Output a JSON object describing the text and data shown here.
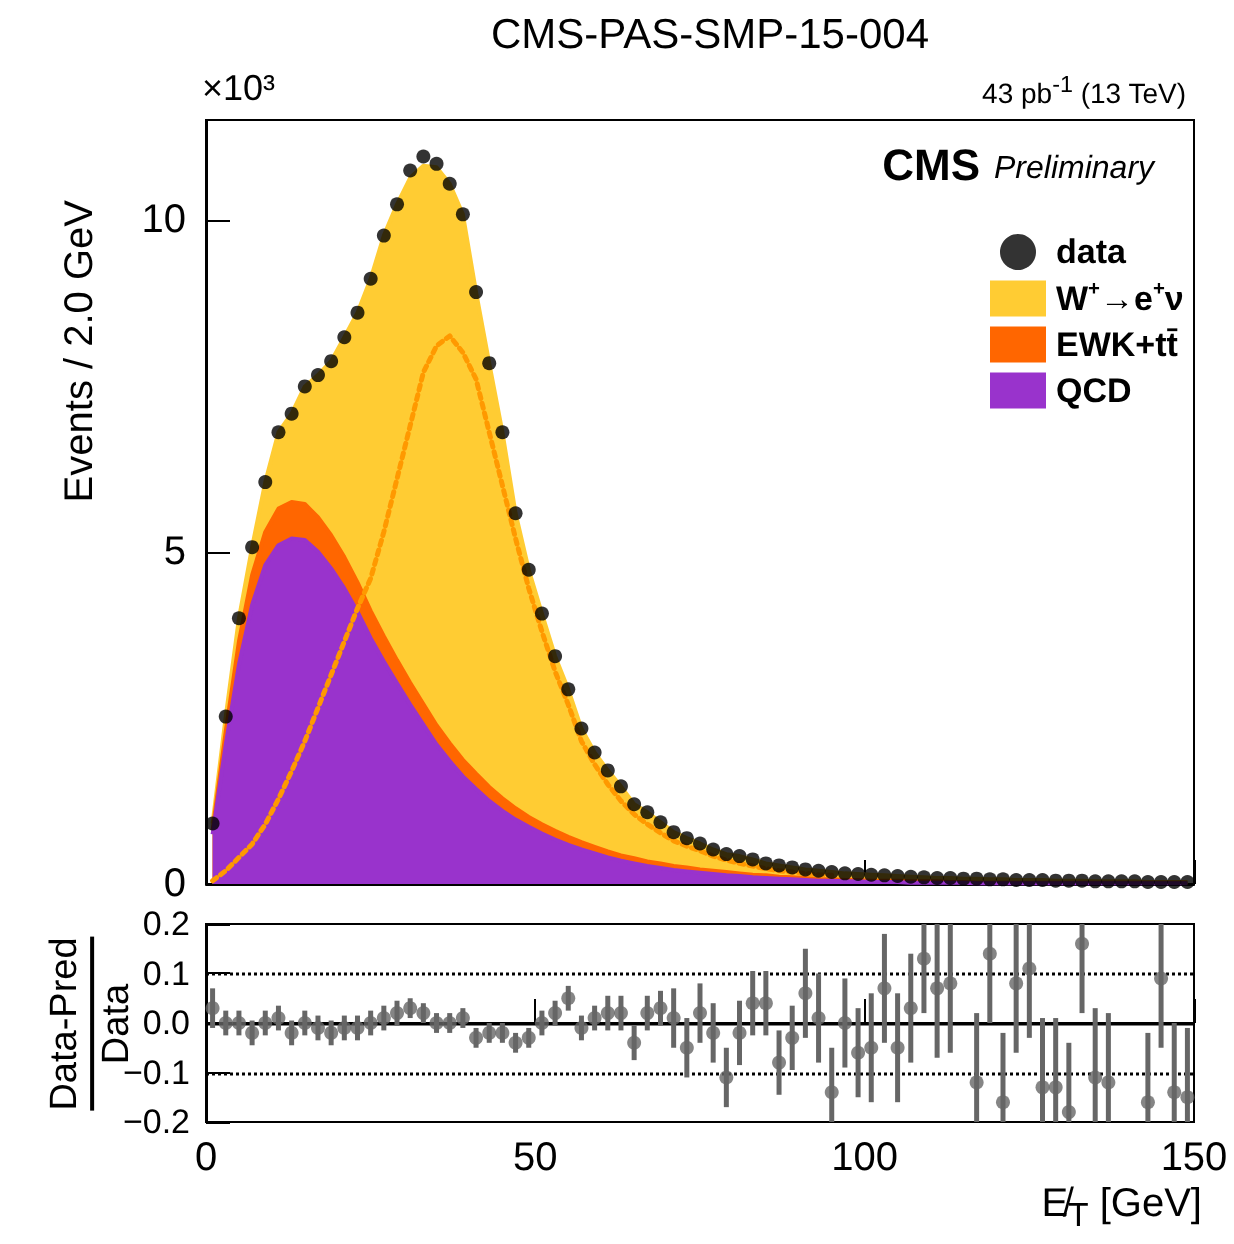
{
  "chart_data": [
    {
      "type": "area",
      "title": "CMS-PAS-SMP-15-004",
      "ylabel": "Events / 2.0 GeV",
      "annotations": [
        "×10³",
        "43 pb$^{-1}$  (13 TeV)",
        "CMS",
        "Preliminary"
      ],
      "stacked": true,
      "legend": "top right",
      "tick_labels": "y",
      "xlim": [
        0,
        150
      ],
      "xticks": [
        0,
        50,
        100,
        150
      ],
      "ylim": [
        0,
        11.5
      ],
      "yticks": [
        0,
        5,
        10
      ],
      "x": [
        1,
        3,
        5,
        7,
        9,
        11,
        13,
        15,
        17,
        19,
        21,
        23,
        25,
        27,
        29,
        31,
        33,
        35,
        37,
        39,
        41,
        43,
        45,
        47,
        49,
        51,
        53,
        55,
        57,
        59,
        61,
        63,
        65,
        67,
        69,
        71,
        73,
        75,
        77,
        79,
        81,
        83,
        85,
        87,
        89,
        91,
        93,
        95,
        97,
        99,
        101,
        103,
        105,
        107,
        109,
        111,
        113,
        115,
        117,
        119,
        121,
        123,
        125,
        127,
        129,
        131,
        133,
        135,
        137,
        139,
        141,
        143,
        145,
        147,
        149
      ],
      "series": [
        {
          "name": "QCD",
          "color": "#9933cc",
          "values": [
            0.75,
            2.1,
            3.3,
            4.2,
            4.8,
            5.1,
            5.2,
            5.18,
            5.0,
            4.75,
            4.45,
            4.1,
            3.7,
            3.35,
            3.02,
            2.7,
            2.4,
            2.1,
            1.85,
            1.62,
            1.43,
            1.25,
            1.1,
            0.97,
            0.86,
            0.76,
            0.67,
            0.59,
            0.52,
            0.46,
            0.4,
            0.35,
            0.31,
            0.27,
            0.24,
            0.21,
            0.19,
            0.17,
            0.15,
            0.13,
            0.12,
            0.1,
            0.09,
            0.08,
            0.07,
            0.06,
            0.05,
            0.05,
            0.04,
            0.04,
            0.03,
            0.03,
            0.03,
            0.02,
            0.02,
            0.02,
            0.02,
            0.02,
            0.01,
            0.01,
            0.01,
            0.01,
            0.01,
            0.01,
            0.01,
            0.01,
            0.01,
            0.01,
            0.01,
            0.01,
            0.01,
            0.01,
            0.01,
            0.01,
            0.01
          ]
        },
        {
          "name": "EWK+tt̄",
          "color": "#ff6600",
          "values": [
            0.06,
            0.2,
            0.35,
            0.45,
            0.5,
            0.55,
            0.55,
            0.54,
            0.52,
            0.5,
            0.47,
            0.44,
            0.41,
            0.38,
            0.35,
            0.33,
            0.31,
            0.29,
            0.27,
            0.25,
            0.23,
            0.21,
            0.19,
            0.17,
            0.15,
            0.14,
            0.13,
            0.12,
            0.11,
            0.1,
            0.09,
            0.08,
            0.08,
            0.07,
            0.07,
            0.06,
            0.06,
            0.05,
            0.05,
            0.05,
            0.04,
            0.04,
            0.04,
            0.03,
            0.03,
            0.03,
            0.02,
            0.02,
            0.02,
            0.02,
            0.02,
            0.02,
            0.02,
            0.02,
            0.02,
            0.02,
            0.01,
            0.01,
            0.01,
            0.01,
            0.01,
            0.01,
            0.01,
            0.01,
            0.01,
            0.01,
            0.01,
            0.01,
            0.01,
            0.01,
            0.01,
            0.01,
            0.01,
            0.01,
            0.01
          ]
        },
        {
          "name": "W$^{+}$→e$^{+}$ν",
          "color": "#ffcc33",
          "values": [
            0.1,
            0.22,
            0.35,
            0.42,
            0.75,
            1.15,
            1.33,
            1.77,
            2.14,
            2.62,
            3.31,
            4.06,
            5.0,
            6.03,
            6.86,
            7.6,
            8.1,
            8.4,
            8.42,
            8.21,
            7.25,
            6.38,
            5.51,
            4.44,
            3.72,
            3.17,
            2.63,
            2.22,
            1.71,
            1.42,
            1.22,
            1.04,
            0.81,
            0.74,
            0.62,
            0.51,
            0.44,
            0.39,
            0.32,
            0.27,
            0.26,
            0.23,
            0.18,
            0.17,
            0.15,
            0.13,
            0.13,
            0.11,
            0.1,
            0.09,
            0.09,
            0.08,
            0.07,
            0.07,
            0.06,
            0.05,
            0.06,
            0.05,
            0.06,
            0.05,
            0.05,
            0.04,
            0.04,
            0.04,
            0.03,
            0.03,
            0.03,
            0.02,
            0.02,
            0.02,
            0.02,
            0.01,
            0.01,
            0.01,
            0.01
          ]
        },
        {
          "type": "line",
          "line_style": "dotted",
          "color": "#ff9900",
          "values": [
            0.05,
            0.2,
            0.4,
            0.6,
            0.9,
            1.28,
            1.7,
            2.15,
            2.65,
            3.15,
            3.65,
            4.15,
            4.6,
            5.3,
            6.1,
            6.9,
            7.7,
            8.1,
            8.25,
            8.0,
            7.6,
            6.8,
            6.0,
            5.2,
            4.45,
            3.8,
            3.2,
            2.7,
            2.15,
            1.8,
            1.5,
            1.25,
            1.05,
            0.9,
            0.77,
            0.65,
            0.57,
            0.5,
            0.42,
            0.36,
            0.31,
            0.27,
            0.23,
            0.2,
            0.18,
            0.16,
            0.14,
            0.13,
            null,
            null,
            null,
            null,
            null,
            null,
            null,
            null,
            null,
            null,
            null,
            null,
            null,
            null,
            null,
            null,
            null,
            null,
            null,
            null,
            null,
            null,
            null,
            null,
            null,
            null,
            null
          ]
        },
        {
          "type": "scatter",
          "name": "data",
          "marker": "circle",
          "color": "#000000",
          "values": [
            0.91,
            2.52,
            4.0,
            5.07,
            6.05,
            6.8,
            7.08,
            7.49,
            7.66,
            7.87,
            8.23,
            8.6,
            9.11,
            9.76,
            10.23,
            10.74,
            10.95,
            10.84,
            10.54,
            10.08,
            8.91,
            7.84,
            6.8,
            5.58,
            4.73,
            4.07,
            3.43,
            2.93,
            2.34,
            1.98,
            1.71,
            1.47,
            1.2,
            1.08,
            0.93,
            0.78,
            0.69,
            0.61,
            0.52,
            0.45,
            0.42,
            0.37,
            0.31,
            0.28,
            0.25,
            0.22,
            0.2,
            0.18,
            0.16,
            0.15,
            0.14,
            0.13,
            0.12,
            0.11,
            0.1,
            0.09,
            0.09,
            0.08,
            0.08,
            0.07,
            0.07,
            0.06,
            0.06,
            0.06,
            0.05,
            0.05,
            0.05,
            0.04,
            0.04,
            0.04,
            0.04,
            0.03,
            0.03,
            0.03,
            0.03
          ]
        }
      ]
    },
    {
      "type": "scatter",
      "xlabel": "E̸$_{T}$ [GeV]",
      "ylabel": "Data-Pred/Data",
      "marker": "circle",
      "xlim": [
        0,
        150
      ],
      "xticks": [
        0,
        50,
        100,
        150
      ],
      "ylim": [
        -0.2,
        0.2
      ],
      "yticks": [
        {
          "value": -0.2,
          "label": "−0.2"
        },
        {
          "value": -0.1,
          "label": "−0.1"
        },
        {
          "value": 0,
          "label": "0.0"
        },
        0.1,
        0.2
      ],
      "ref_lines": [
        {
          "axis": "y",
          "value": 0,
          "color": "#000000",
          "line_style": "solid"
        },
        {
          "axis": "y",
          "value": 0.1,
          "color": "#000000",
          "line_style": "dotted"
        },
        {
          "axis": "y",
          "value": -0.1,
          "color": "#000000",
          "line_style": "dotted"
        }
      ],
      "x": [
        1,
        3,
        5,
        7,
        9,
        11,
        13,
        15,
        17,
        19,
        21,
        23,
        25,
        27,
        29,
        31,
        33,
        35,
        37,
        39,
        41,
        43,
        45,
        47,
        49,
        51,
        53,
        55,
        57,
        59,
        61,
        63,
        65,
        67,
        69,
        71,
        73,
        75,
        77,
        79,
        81,
        83,
        85,
        87,
        89,
        91,
        93,
        95,
        97,
        99,
        101,
        103,
        105,
        107,
        109,
        111,
        113,
        115,
        117,
        119,
        121,
        123,
        125,
        127,
        129,
        131,
        133,
        135,
        137,
        139,
        141,
        143,
        145,
        147,
        149
      ],
      "series": [
        {
          "color": "#666666",
          "values": [
            0.03,
            0,
            0,
            -0.02,
            0,
            0.01,
            -0.02,
            0,
            -0.01,
            -0.02,
            -0.01,
            -0.01,
            0,
            0.01,
            0.02,
            0.03,
            0.02,
            0,
            0,
            0.01,
            -0.03,
            -0.02,
            -0.02,
            -0.04,
            -0.03,
            0,
            0.02,
            0.05,
            -0.01,
            0.01,
            0.02,
            0.02,
            -0.04,
            0.02,
            0.03,
            0.01,
            -0.05,
            0.02,
            -0.02,
            -0.11,
            -0.02,
            0.04,
            0.04,
            -0.08,
            -0.03,
            0.06,
            0.01,
            -0.14,
            0,
            -0.06,
            -0.05,
            0.07,
            -0.05,
            0.03,
            0.13,
            0.07,
            0.08,
            null,
            -0.12,
            0.14,
            -0.16,
            0.08,
            0.11,
            -0.13,
            -0.13,
            -0.18,
            0.16,
            -0.11,
            -0.12,
            null,
            null,
            -0.16,
            0.09,
            -0.14,
            -0.15
          ],
          "errors": [
            0.04,
            0.025,
            0.025,
            0.025,
            0.025,
            0.025,
            0.025,
            0.025,
            0.025,
            0.025,
            0.025,
            0.025,
            0.025,
            0.025,
            0.025,
            0.02,
            0.02,
            0.02,
            0.02,
            0.02,
            0.02,
            0.02,
            0.02,
            0.02,
            0.02,
            0.025,
            0.025,
            0.025,
            0.025,
            0.025,
            0.035,
            0.035,
            0.035,
            0.035,
            0.035,
            0.06,
            0.06,
            0.06,
            0.06,
            0.06,
            0.065,
            0.065,
            0.065,
            0.065,
            0.065,
            0.09,
            0.09,
            [
              -0.2,
              -0.05
            ],
            0.09,
            0.09,
            0.11,
            0.11,
            0.11,
            0.11,
            [
              0.02,
              0.2
            ],
            [
              -0.07,
              0.2
            ],
            [
              -0.06,
              0.2
            ],
            null,
            [
              -0.2,
              0.02
            ],
            [
              0,
              0.2
            ],
            [
              -0.2,
              -0.02
            ],
            [
              -0.06,
              0.2
            ],
            [
              -0.03,
              0.2
            ],
            [
              -0.2,
              0.01
            ],
            [
              -0.2,
              0.01
            ],
            [
              -0.2,
              -0.04
            ],
            [
              0.02,
              0.2
            ],
            [
              -0.2,
              0.03
            ],
            [
              -0.2,
              0.02
            ],
            null,
            null,
            [
              -0.2,
              -0.02
            ],
            [
              -0.05,
              0.2
            ],
            [
              -0.2,
              0
            ],
            [
              -0.2,
              -0.01
            ]
          ]
        }
      ]
    }
  ]
}
